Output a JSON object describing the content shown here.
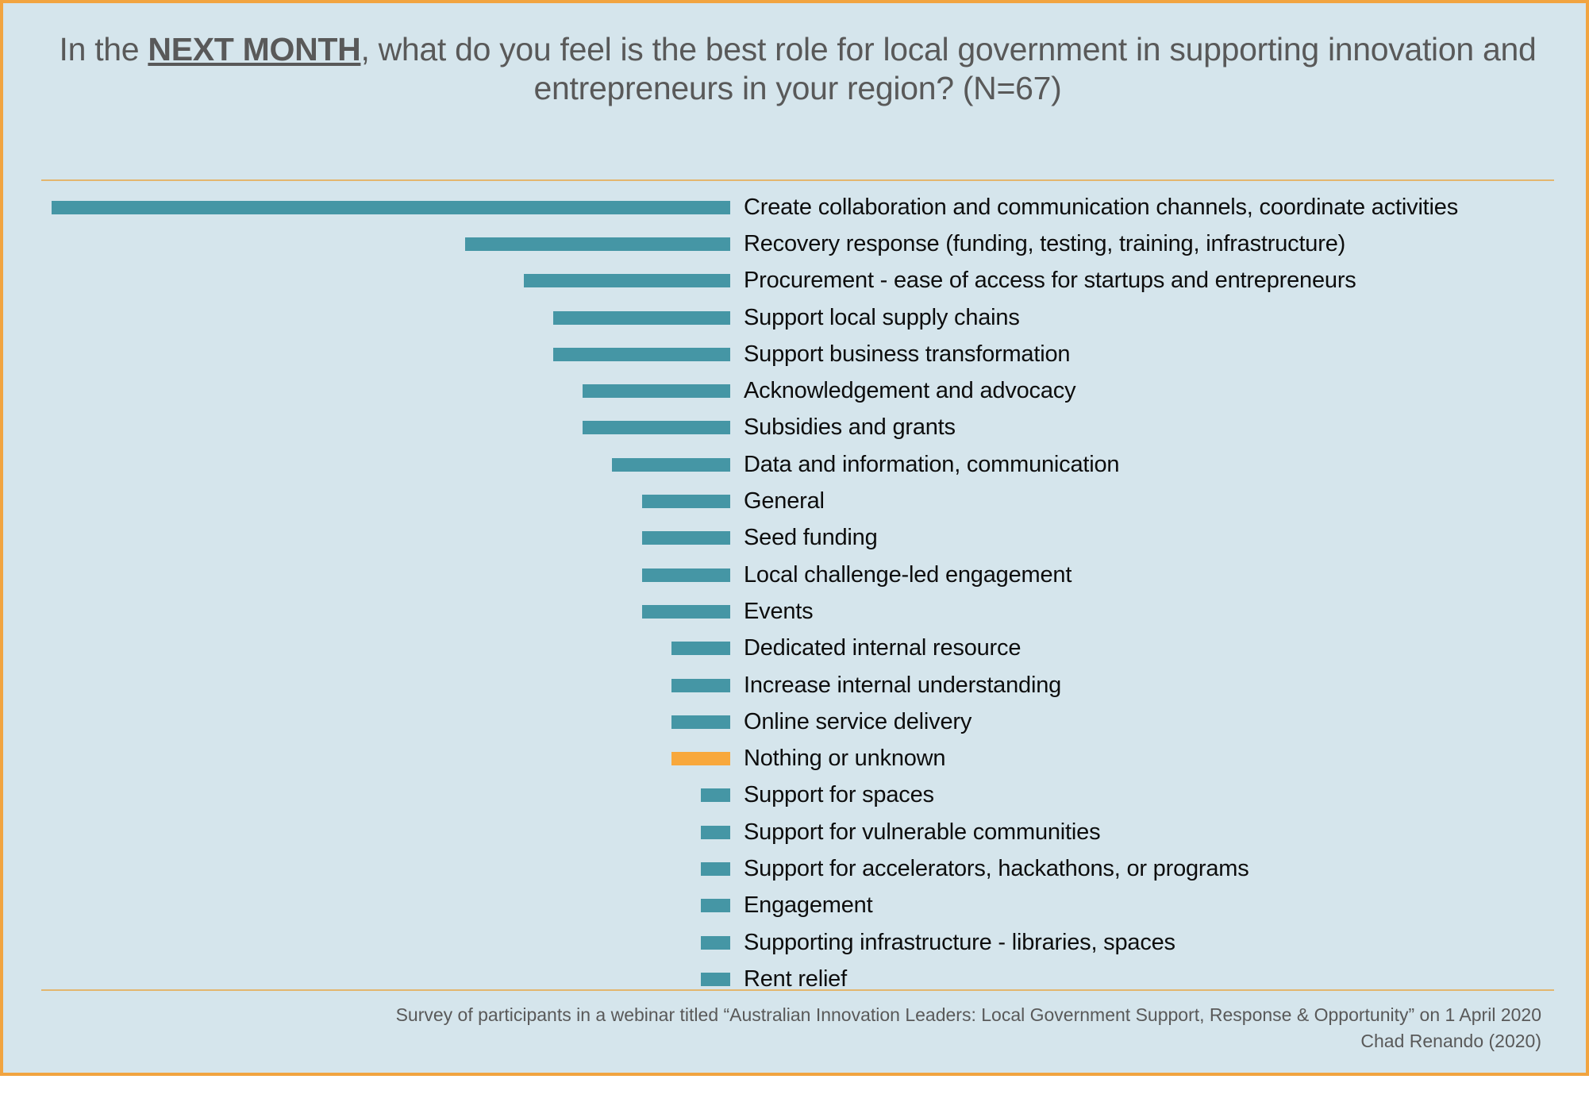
{
  "slide": {
    "title": {
      "prefix": "In the ",
      "emphasis": "NEXT MONTH",
      "suffix": ", what do you feel is the best role for local government in supporting innovation and entrepreneurs in your region? (N=67)"
    },
    "footer": {
      "line1": "Survey of participants in a webinar titled “Australian Innovation Leaders: Local Government Support, Response & Opportunity” on 1 April 2020",
      "line2": "Chad Renando (2020)"
    }
  },
  "chart_data": {
    "type": "bar",
    "orientation": "horizontal",
    "title": "In the NEXT MONTH, what do you feel is the best role for local government in supporting innovation and entrepreneurs in your region? (N=67)",
    "n": 67,
    "xlabel": "",
    "ylabel": "",
    "xlim": [
      0,
      23.5
    ],
    "grid": false,
    "legend": false,
    "value_labels": false,
    "bars_right_aligned": true,
    "categories": [
      "Create collaboration and communication channels, coordinate activities",
      "Recovery response (funding, testing, training, infrastructure)",
      "Procurement - ease of access for startups and entrepreneurs",
      "Support local supply chains",
      "Support business transformation",
      "Acknowledgement and advocacy",
      "Subsidies and grants",
      "Data and information, communication",
      "General",
      "Seed funding",
      "Local challenge-led engagement",
      "Events",
      "Dedicated internal resource",
      "Increase internal understanding",
      "Online service delivery",
      "Nothing or unknown",
      "Support for spaces",
      "Support for vulnerable communities",
      "Support for accelerators, hackathons, or programs",
      "Engagement",
      "Supporting infrastructure - libraries, spaces",
      "Rent relief"
    ],
    "values": [
      23,
      9,
      7,
      6,
      6,
      5,
      5,
      4,
      3,
      3,
      3,
      3,
      2,
      2,
      2,
      2,
      1,
      1,
      1,
      1,
      1,
      1
    ],
    "highlight_index": 15,
    "highlight_category": "Nothing or unknown"
  },
  "colors": {
    "background": "#D5E5EC",
    "page_background": "#FFFFFF",
    "border": "#F1A440",
    "divider": "#E3B66E",
    "bar": "#4596A5",
    "highlight": "#F8A83C",
    "title_text": "#595959",
    "label_text": "#0D0D0D",
    "footer_text": "#595959"
  }
}
